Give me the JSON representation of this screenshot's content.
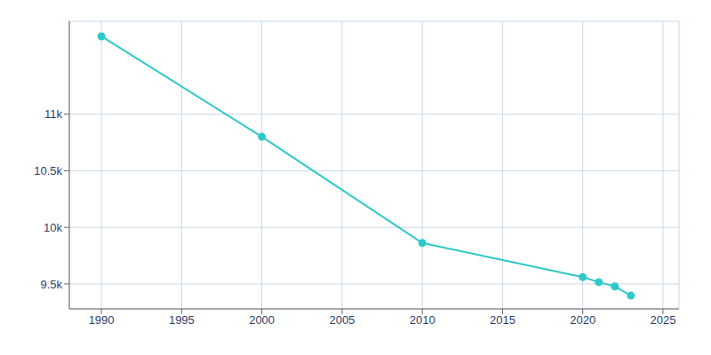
{
  "chart_data": {
    "type": "line",
    "x": [
      1990,
      2000,
      2010,
      2020,
      2021,
      2022,
      2023
    ],
    "values": [
      11687,
      10800,
      9862,
      9560,
      9516,
      9478,
      9397
    ],
    "color": "#2ec8c8",
    "marker": "circle",
    "xlim": [
      1988,
      2026
    ],
    "xticks": [
      1990,
      1995,
      2000,
      2005,
      2010,
      2015,
      2020,
      2025
    ],
    "ylim": [
      9280,
      11820
    ],
    "yticks": [
      {
        "value": 9500,
        "label": "9.5k"
      },
      {
        "value": 10000,
        "label": "10k"
      },
      {
        "value": 10500,
        "label": "10.5k"
      },
      {
        "value": 11000,
        "label": "11k"
      }
    ],
    "grid": true
  }
}
